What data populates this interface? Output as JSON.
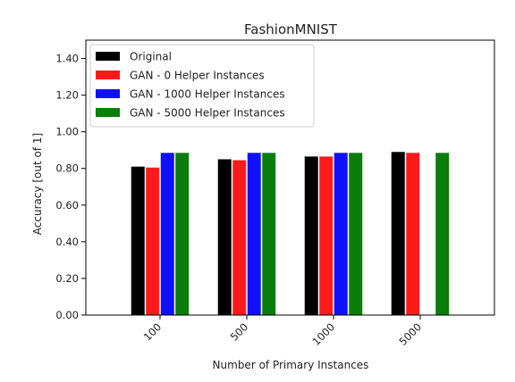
{
  "chart_data": {
    "type": "bar",
    "title": "FashionMNIST",
    "xlabel": "Number of Primary Instances",
    "ylabel": "Accuracy [out of 1]",
    "categories": [
      "100",
      "500",
      "1000",
      "5000"
    ],
    "ylim": [
      0,
      1.5
    ],
    "yticks": [
      "0.00",
      "0.20",
      "0.40",
      "0.60",
      "0.80",
      "1.00",
      "1.20",
      "1.40"
    ],
    "grid": false,
    "legend_position": "top-left",
    "series": [
      {
        "name": "Original",
        "color": "#000000",
        "values": [
          0.81,
          0.85,
          0.865,
          0.89
        ]
      },
      {
        "name": "GAN - 0 Helper Instances",
        "color": "#ff1a1a",
        "values": [
          0.805,
          0.845,
          0.865,
          0.885
        ]
      },
      {
        "name": "GAN - 1000 Helper Instances",
        "color": "#1010ff",
        "values": [
          0.885,
          0.885,
          0.885,
          null
        ]
      },
      {
        "name": "GAN - 5000 Helper Instances",
        "color": "#0a7d0a",
        "values": [
          0.885,
          0.885,
          0.885,
          0.885
        ]
      }
    ]
  }
}
